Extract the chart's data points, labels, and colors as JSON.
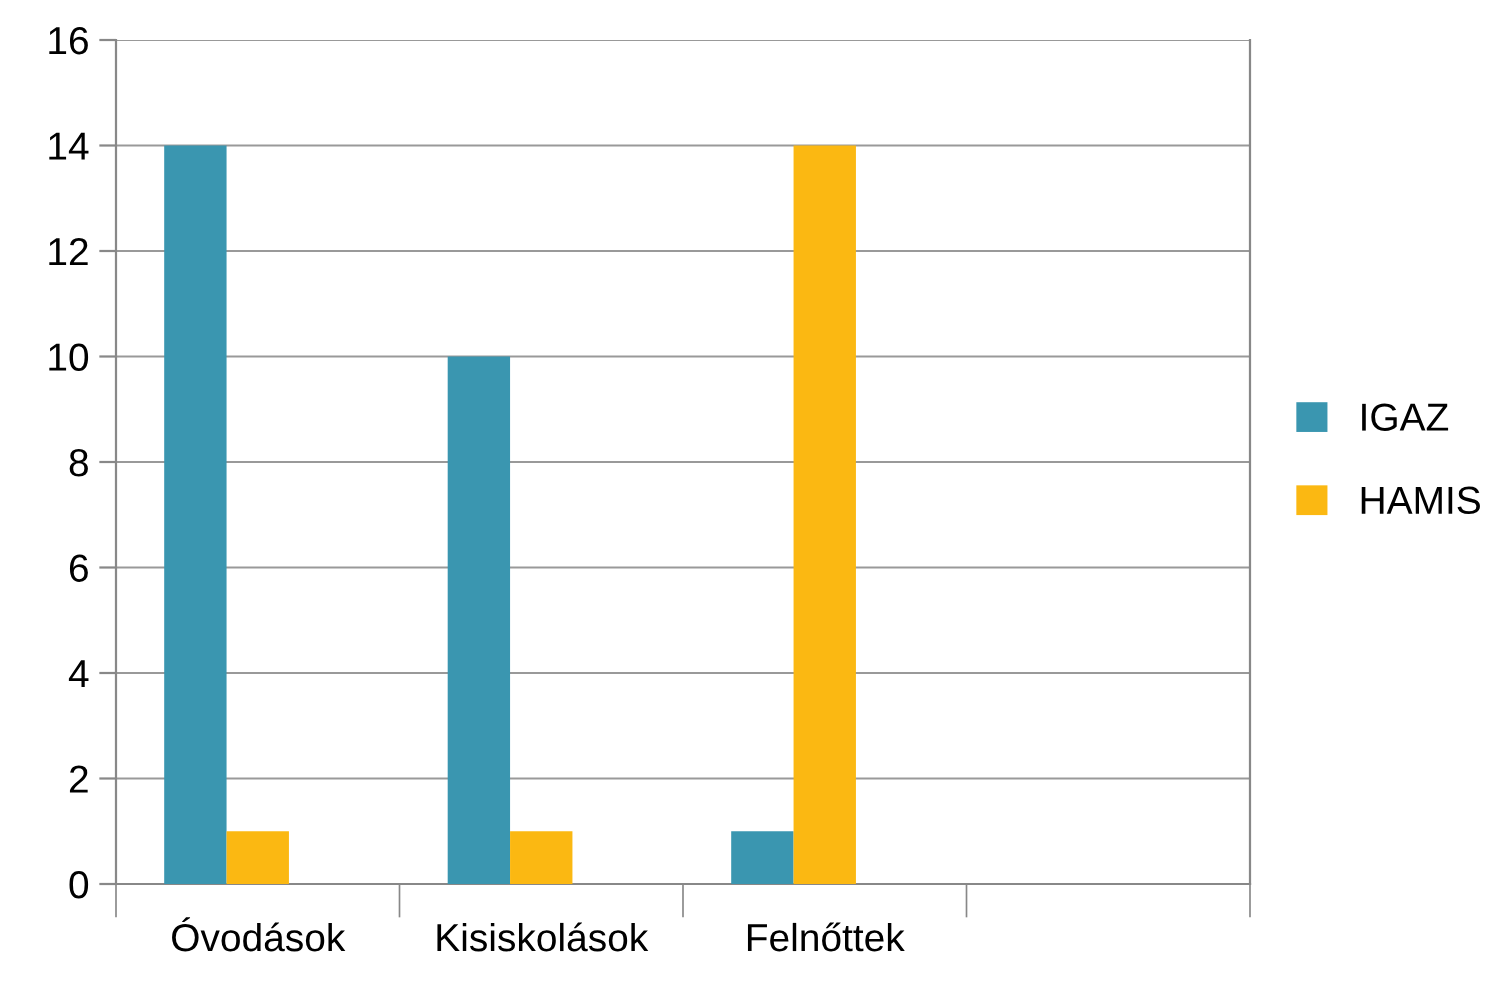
{
  "chart_data": {
    "type": "bar",
    "categories": [
      "Óvodások",
      "Kisiskolások",
      "Felnőttek",
      null
    ],
    "series": [
      {
        "name": "IGAZ",
        "color": "#3a96b0",
        "values": [
          14,
          10,
          1,
          null
        ]
      },
      {
        "name": "HAMIS",
        "color": "#fbb812",
        "values": [
          1,
          1,
          14,
          null
        ]
      }
    ],
    "ylim": [
      0,
      16
    ],
    "yticks": [
      0,
      2,
      4,
      6,
      8,
      10,
      12,
      14,
      16
    ],
    "grid": "y",
    "legend": "right"
  }
}
